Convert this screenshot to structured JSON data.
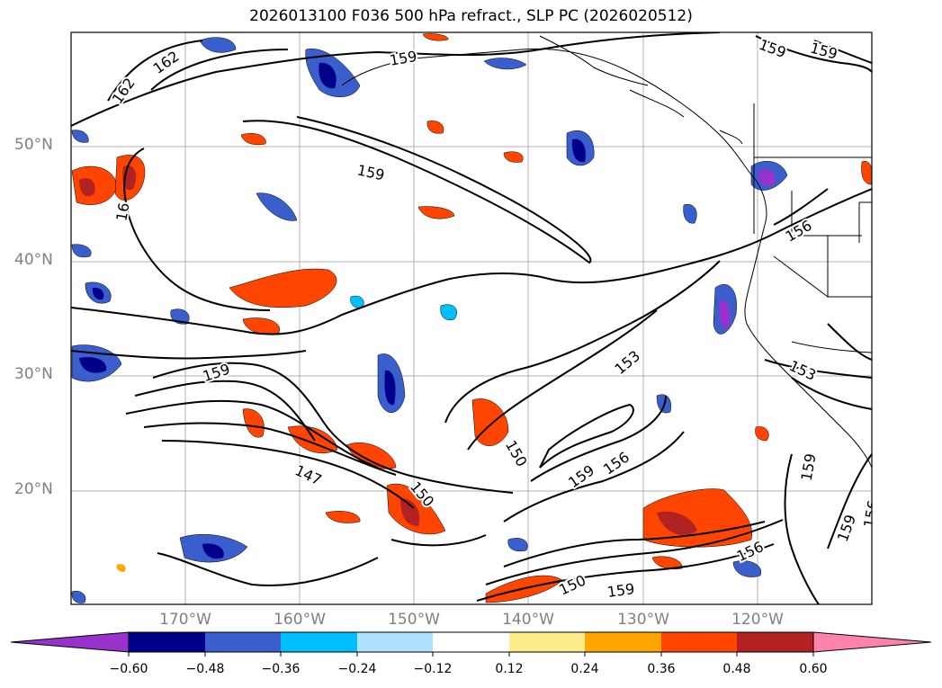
{
  "title": "2026013100 F036 500 hPa refract., SLP PC (2026020512)",
  "lat_labels": [
    "50°N",
    "40°N",
    "30°N",
    "20°N"
  ],
  "lon_labels": [
    "170°W",
    "160°W",
    "150°W",
    "140°W",
    "130°W",
    "120°W"
  ],
  "colorbar": {
    "ticks": [
      "−0.60",
      "−0.48",
      "−0.36",
      "−0.24",
      "−0.12",
      "0.12",
      "0.24",
      "0.36",
      "0.48",
      "0.60"
    ],
    "colors": [
      "#9932cc",
      "#00008b",
      "#3a5fcd",
      "#00bfff",
      "#b0e2ff",
      "#ffffff",
      "#ffec8b",
      "#ffa500",
      "#ff4500",
      "#b22222",
      "#ff82ab"
    ]
  },
  "contour_labels": [
    "162",
    "162",
    "159",
    "159",
    "159",
    "159",
    "159",
    "156",
    "153",
    "153",
    "147",
    "150",
    "150",
    "159",
    "156",
    "150",
    "159",
    "156",
    "159",
    "159",
    "156",
    "16"
  ],
  "colors": {
    "contour": "#000000",
    "grid": "#b0b0b0",
    "coast": "#000000"
  }
}
